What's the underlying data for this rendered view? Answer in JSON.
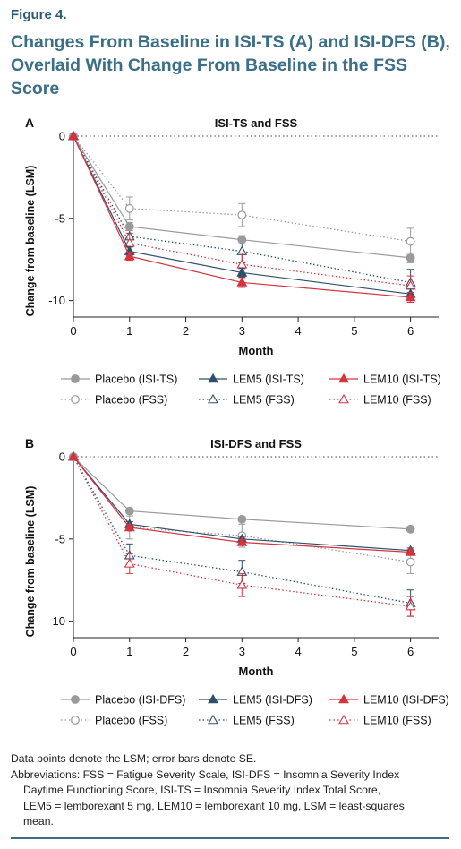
{
  "figure": {
    "label": "Figure 4.",
    "title": "Changes From Baseline in ISI-TS (A) and ISI-DFS (B), Overlaid With Change From Baseline in the FSS Score"
  },
  "chart_data": [
    {
      "type": "line",
      "panel_letter": "A",
      "title": "ISI-TS and FSS",
      "xlabel": "Month",
      "ylabel": "Change from baseline (LSM)",
      "xlim": [
        0,
        6.5
      ],
      "ylim": [
        -11,
        0
      ],
      "x_ticks": [
        0,
        1,
        2,
        3,
        4,
        5,
        6
      ],
      "y_ticks": [
        0,
        -5,
        -10
      ],
      "x": [
        0,
        1,
        3,
        6
      ],
      "reference_line_y": 0,
      "legend_placement": "below",
      "series": [
        {
          "name": "Placebo (ISI-TS)",
          "values": [
            0,
            -5.5,
            -6.3,
            -7.4
          ],
          "se": [
            0,
            0.25,
            0.25,
            0.3
          ],
          "color": "#9a9a9a",
          "marker": "circle-filled",
          "line": "solid"
        },
        {
          "name": "LEM5 (ISI-TS)",
          "values": [
            0,
            -7.0,
            -8.3,
            -9.6
          ],
          "se": [
            0,
            0.25,
            0.25,
            0.3
          ],
          "color": "#2e4f6b",
          "marker": "triangle-filled",
          "line": "solid"
        },
        {
          "name": "LEM10 (ISI-TS)",
          "values": [
            0,
            -7.3,
            -8.9,
            -9.8
          ],
          "se": [
            0,
            0.25,
            0.3,
            0.3
          ],
          "color": "#d3343f",
          "marker": "triangle-filled",
          "line": "solid"
        },
        {
          "name": "Placebo  (FSS)",
          "values": [
            0,
            -4.4,
            -4.8,
            -6.4
          ],
          "se": [
            0,
            0.7,
            0.7,
            0.8
          ],
          "color": "#9a9a9a",
          "marker": "circle-open",
          "line": "dotted"
        },
        {
          "name": "LEM5  (FSS)",
          "values": [
            0,
            -6.1,
            -7.0,
            -8.9
          ],
          "se": [
            0,
            0.6,
            0.7,
            0.8
          ],
          "color": "#2e4f6b",
          "marker": "triangle-open",
          "line": "dotted"
        },
        {
          "name": "LEM10 (FSS)",
          "values": [
            0,
            -6.5,
            -7.8,
            -9.1
          ],
          "se": [
            0,
            0.6,
            0.7,
            0.6
          ],
          "color": "#d3343f",
          "marker": "triangle-open",
          "line": "dotted"
        }
      ]
    },
    {
      "type": "line",
      "panel_letter": "B",
      "title": "ISI-DFS and FSS",
      "xlabel": "Month",
      "ylabel": "Change from baseline (LSM)",
      "xlim": [
        0,
        6.5
      ],
      "ylim": [
        -11,
        0
      ],
      "x_ticks": [
        0,
        1,
        2,
        3,
        4,
        5,
        6
      ],
      "y_ticks": [
        0,
        -5,
        -10
      ],
      "x": [
        0,
        1,
        3,
        6
      ],
      "reference_line_y": 0,
      "legend_placement": "below",
      "series": [
        {
          "name": "Placebo (ISI-DFS)",
          "values": [
            0,
            -3.3,
            -3.8,
            -4.4
          ],
          "se": [
            0,
            0.15,
            0.15,
            0.15
          ],
          "color": "#9a9a9a",
          "marker": "circle-filled",
          "line": "solid"
        },
        {
          "name": "LEM5 (ISI-DFS)",
          "values": [
            0,
            -4.1,
            -5.0,
            -5.7
          ],
          "se": [
            0,
            0.15,
            0.15,
            0.15
          ],
          "color": "#2e4f6b",
          "marker": "triangle-filled",
          "line": "solid"
        },
        {
          "name": "LEM10 (ISI-DFS)",
          "values": [
            0,
            -4.3,
            -5.2,
            -5.8
          ],
          "se": [
            0,
            0.15,
            0.15,
            0.15
          ],
          "color": "#d3343f",
          "marker": "triangle-filled",
          "line": "solid"
        },
        {
          "name": "Placebo  (FSS)",
          "values": [
            0,
            -4.3,
            -4.8,
            -6.4
          ],
          "se": [
            0,
            0.7,
            0.7,
            0.7
          ],
          "color": "#9a9a9a",
          "marker": "circle-open",
          "line": "dotted"
        },
        {
          "name": "LEM5 (FSS)",
          "values": [
            0,
            -6.0,
            -7.0,
            -8.9
          ],
          "se": [
            0,
            0.7,
            0.7,
            0.8
          ],
          "color": "#2e4f6b",
          "marker": "triangle-open",
          "line": "dotted"
        },
        {
          "name": "LEM10 (FSS)",
          "values": [
            0,
            -6.5,
            -7.8,
            -9.1
          ],
          "se": [
            0,
            0.6,
            0.7,
            0.6
          ],
          "color": "#d3343f",
          "marker": "triangle-open",
          "line": "dotted"
        }
      ]
    }
  ],
  "footnote": {
    "line1": "Data points denote the LSM; error bars denote SE.",
    "line2": "Abbreviations: FSS = Fatigue Severity Scale, ISI-DFS = Insomnia Severity Index",
    "line3": "Daytime Functioning Score, ISI-TS = Insomnia Severity Index Total Score,",
    "line4": "LEM5 = lemborexant 5 mg, LEM10 = lemborexant 10 mg, LSM = least-squares",
    "line5": "mean."
  }
}
